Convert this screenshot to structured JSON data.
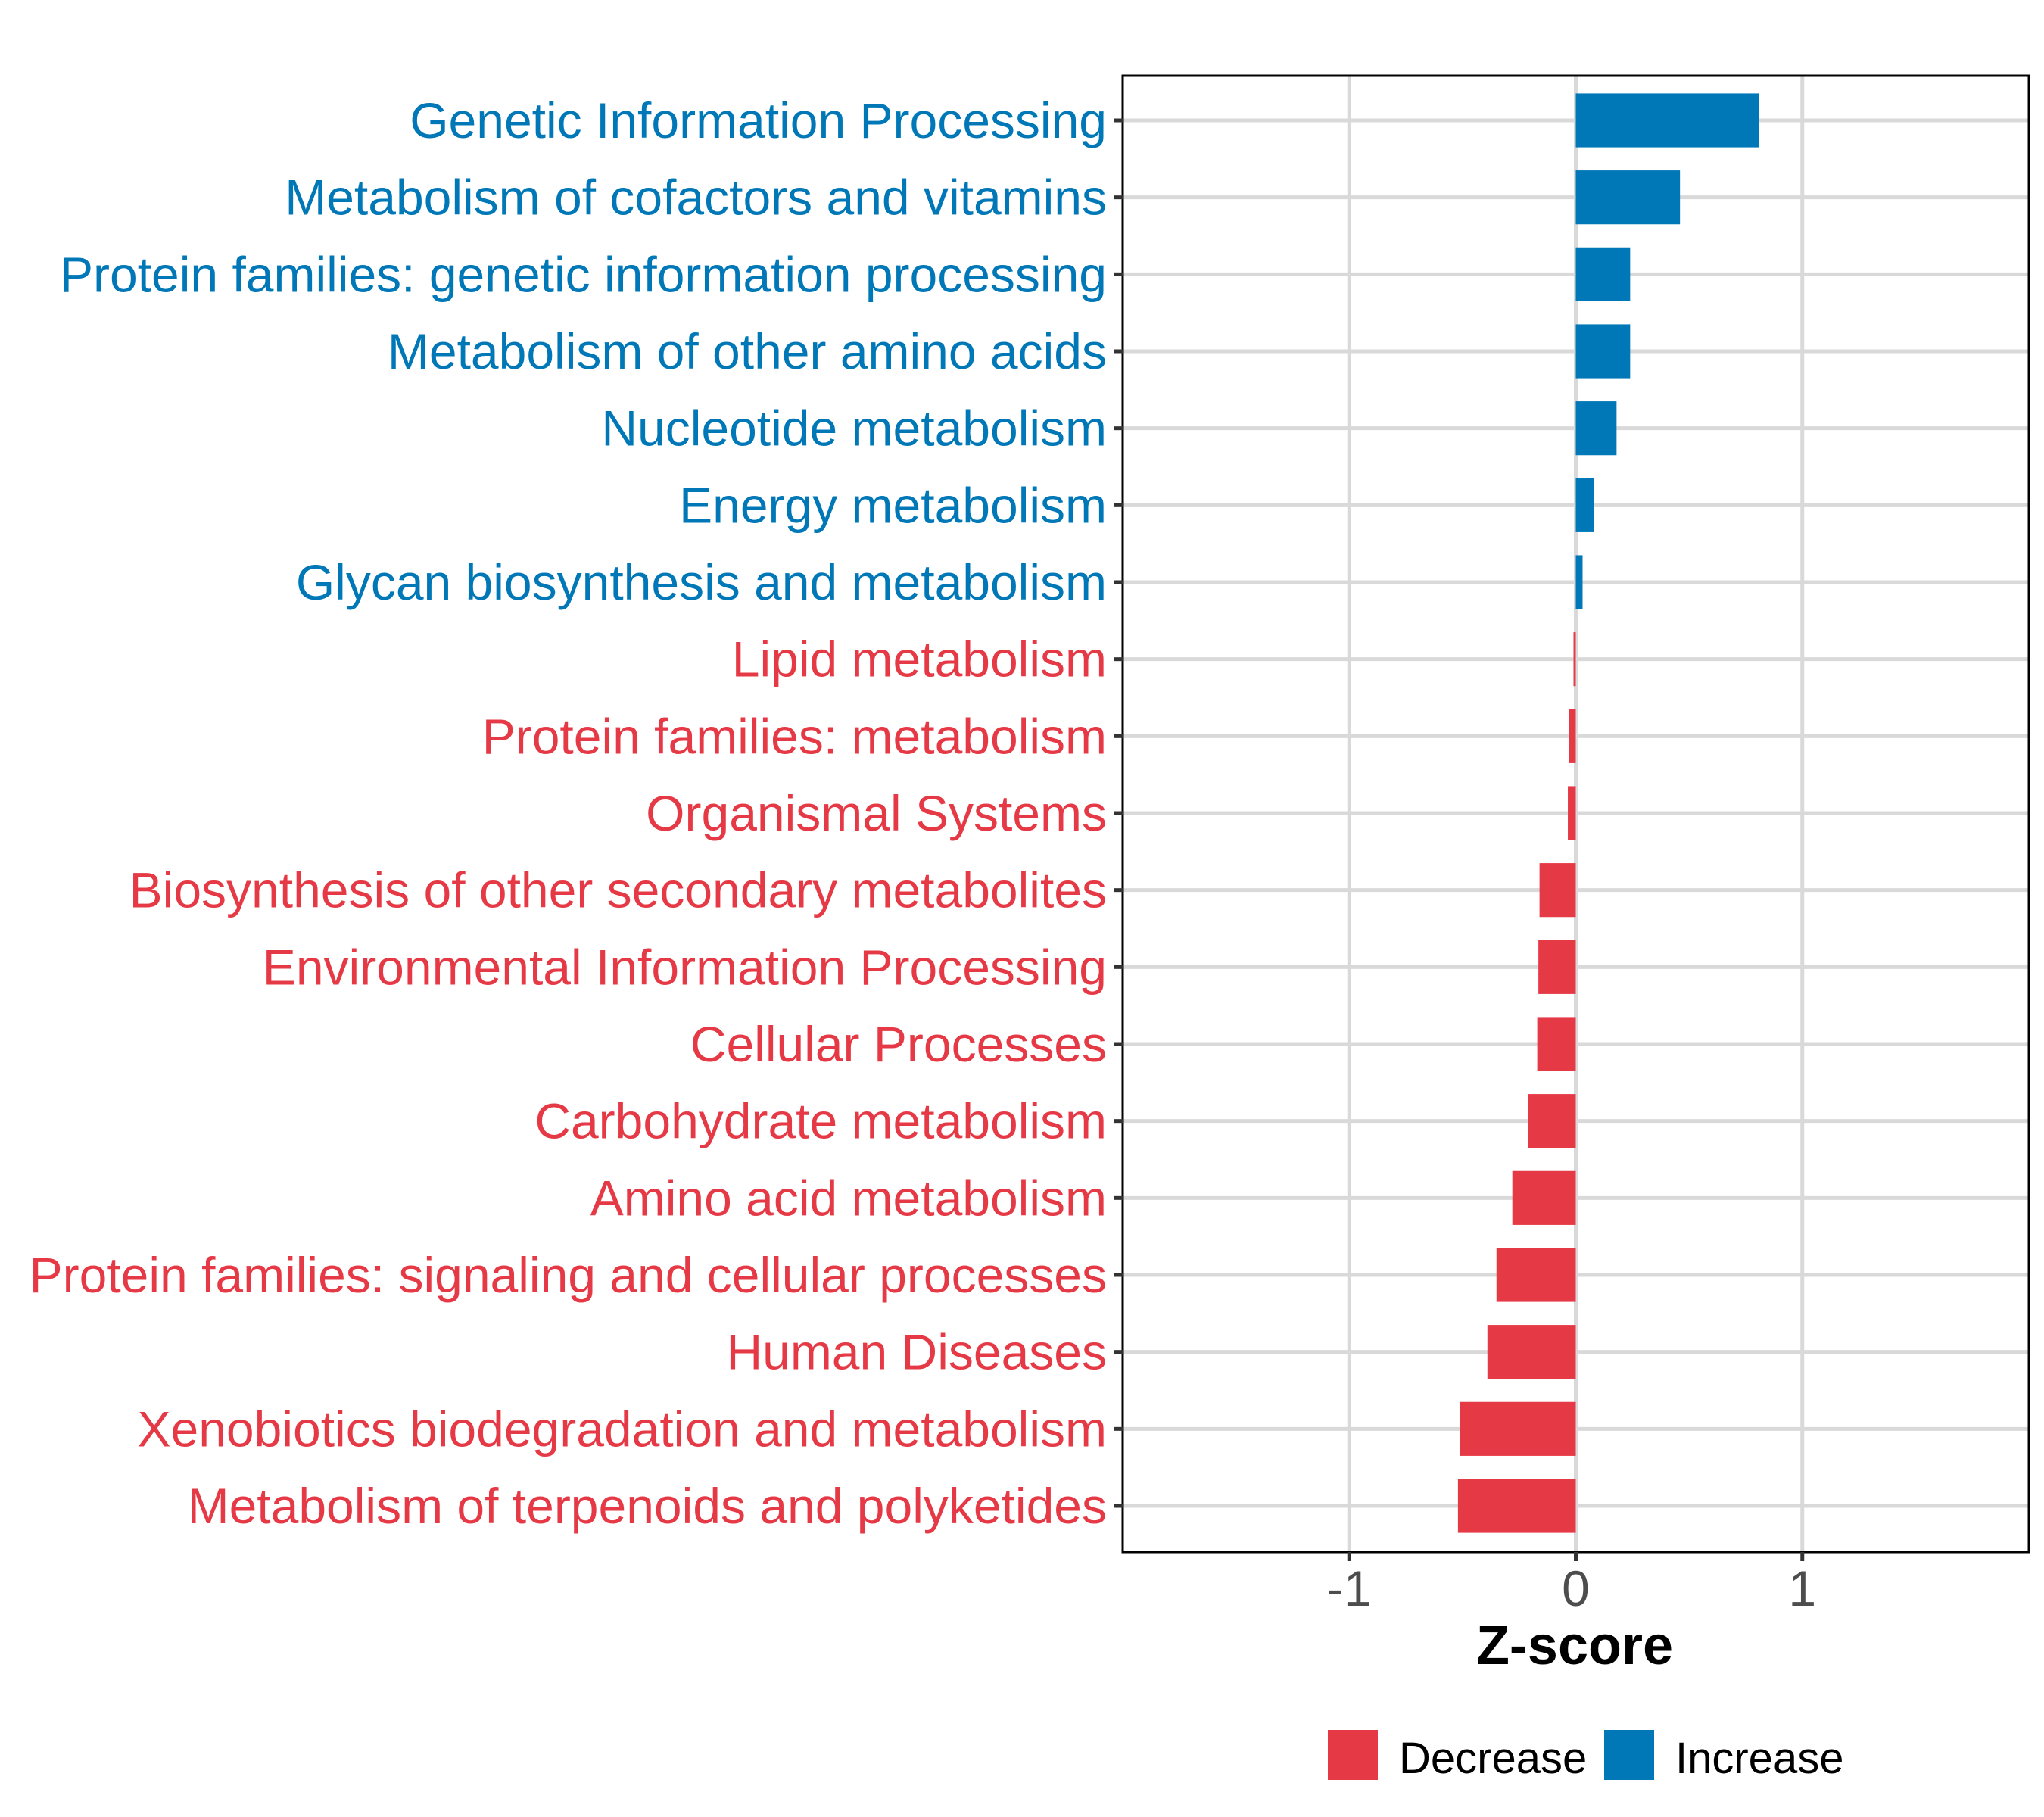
{
  "chart_data": {
    "type": "bar",
    "orientation": "horizontal",
    "title": "",
    "xlabel": "Z-score",
    "ylabel": "",
    "xlim": [
      -2,
      2
    ],
    "x_ticks": [
      -1,
      0,
      1
    ],
    "x_tick_labels": [
      "-1",
      "0",
      "1"
    ],
    "grid": true,
    "legend_position": "bottom",
    "colors": {
      "Decrease": "#E63946",
      "Increase": "#0077B6"
    },
    "categories": [
      "Genetic Information Processing",
      "Metabolism of cofactors and vitamins",
      "Protein families: genetic information processing",
      "Metabolism of other amino acids",
      "Nucleotide metabolism",
      "Energy metabolism",
      "Glycan biosynthesis and metabolism",
      "Lipid metabolism",
      "Protein families: metabolism",
      "Organismal Systems",
      "Biosynthesis of other secondary metabolites",
      "Environmental Information Processing",
      "Cellular Processes",
      "Carbohydrate metabolism",
      "Amino acid metabolism",
      "Protein families: signaling and cellular processes",
      "Human Diseases",
      "Xenobiotics biodegradation and metabolism",
      "Metabolism of terpenoids and polyketides"
    ],
    "values": [
      0.81,
      0.46,
      0.24,
      0.24,
      0.18,
      0.08,
      0.03,
      -0.01,
      -0.03,
      -0.035,
      -0.16,
      -0.165,
      -0.17,
      -0.21,
      -0.28,
      -0.35,
      -0.39,
      -0.51,
      -0.52
    ],
    "groups": [
      "Increase",
      "Increase",
      "Increase",
      "Increase",
      "Increase",
      "Increase",
      "Increase",
      "Decrease",
      "Decrease",
      "Decrease",
      "Decrease",
      "Decrease",
      "Decrease",
      "Decrease",
      "Decrease",
      "Decrease",
      "Decrease",
      "Decrease",
      "Decrease"
    ],
    "legend": [
      {
        "label": "Decrease",
        "color": "#E63946"
      },
      {
        "label": "Increase",
        "color": "#0077B6"
      }
    ]
  }
}
